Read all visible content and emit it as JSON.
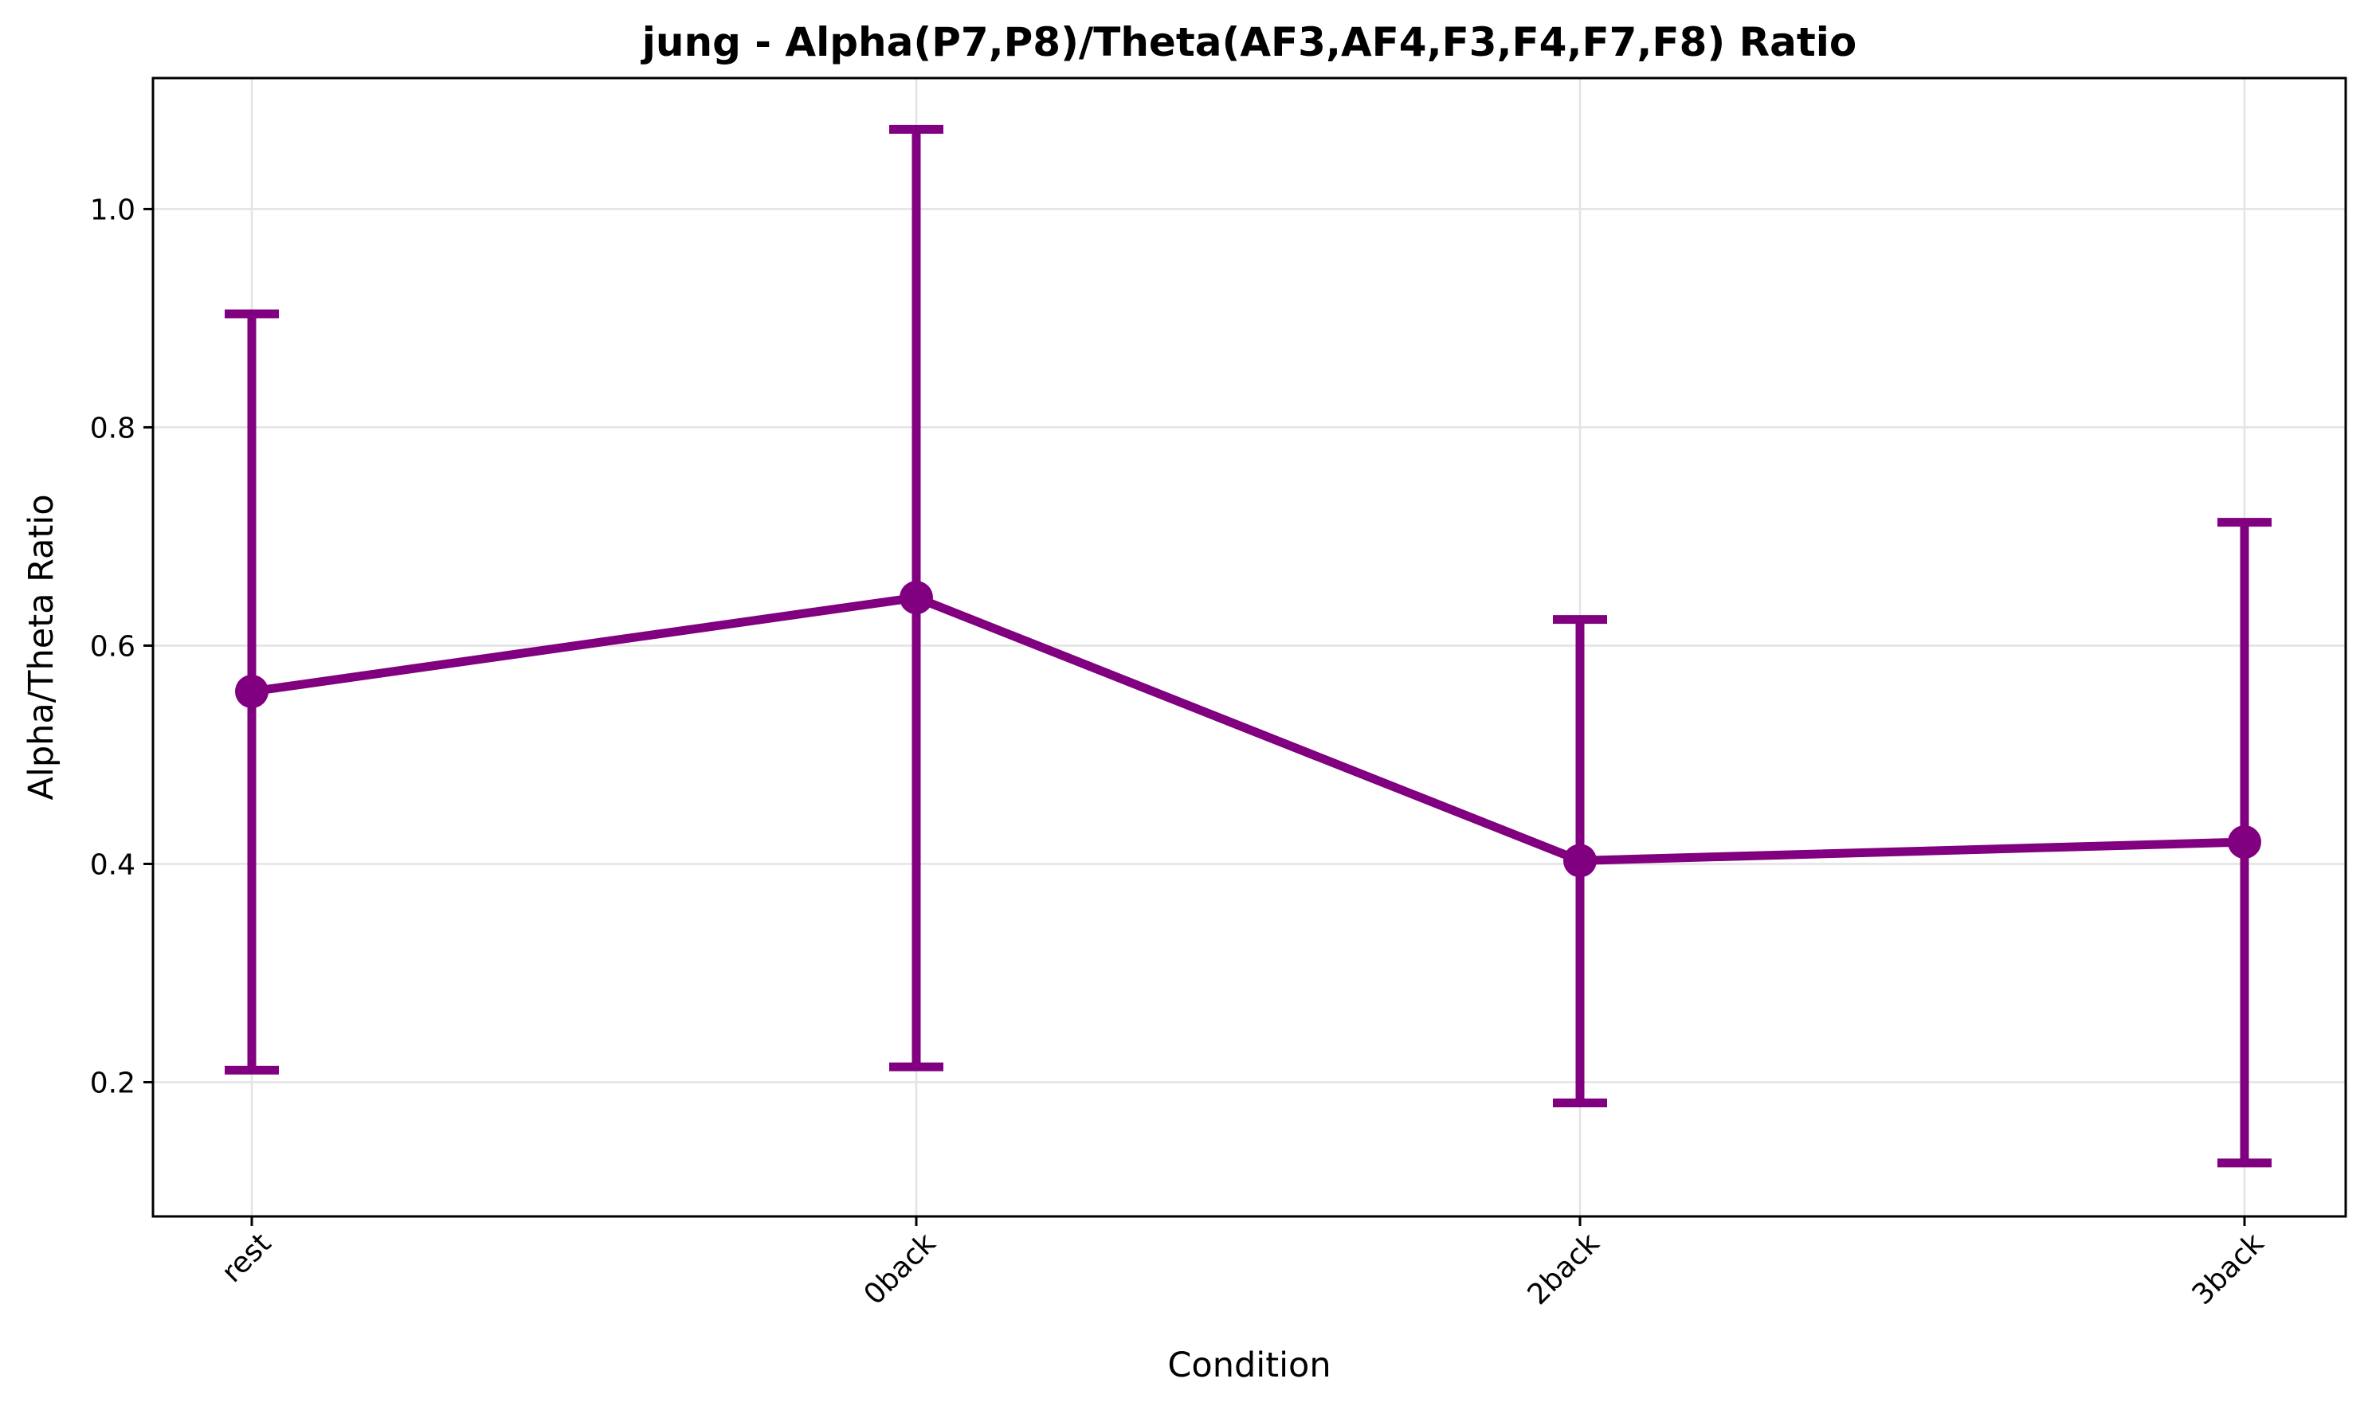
{
  "chart_data": {
    "type": "line",
    "title": "jung - Alpha(P7,P8)/Theta(AF3,AF4,F3,F4,F7,F8) Ratio",
    "xlabel": "Condition",
    "ylabel": "Alpha/Theta Ratio",
    "categories": [
      "rest",
      "0back",
      "2back",
      "3back"
    ],
    "series": [
      {
        "values": [
          0.558,
          0.644,
          0.403,
          0.42
        ],
        "error_low": [
          0.211,
          0.214,
          0.181,
          0.126
        ],
        "error_high": [
          0.904,
          1.073,
          0.624,
          0.713
        ],
        "color": "#800080"
      }
    ],
    "ylim": [
      0.077,
      1.12
    ],
    "yticks": [
      0.2,
      0.4,
      0.6,
      0.8,
      1.0
    ],
    "ytick_labels": [
      "0.2",
      "0.4",
      "0.6",
      "0.8",
      "1.0"
    ],
    "grid": true,
    "xtick_rotation": 45
  }
}
